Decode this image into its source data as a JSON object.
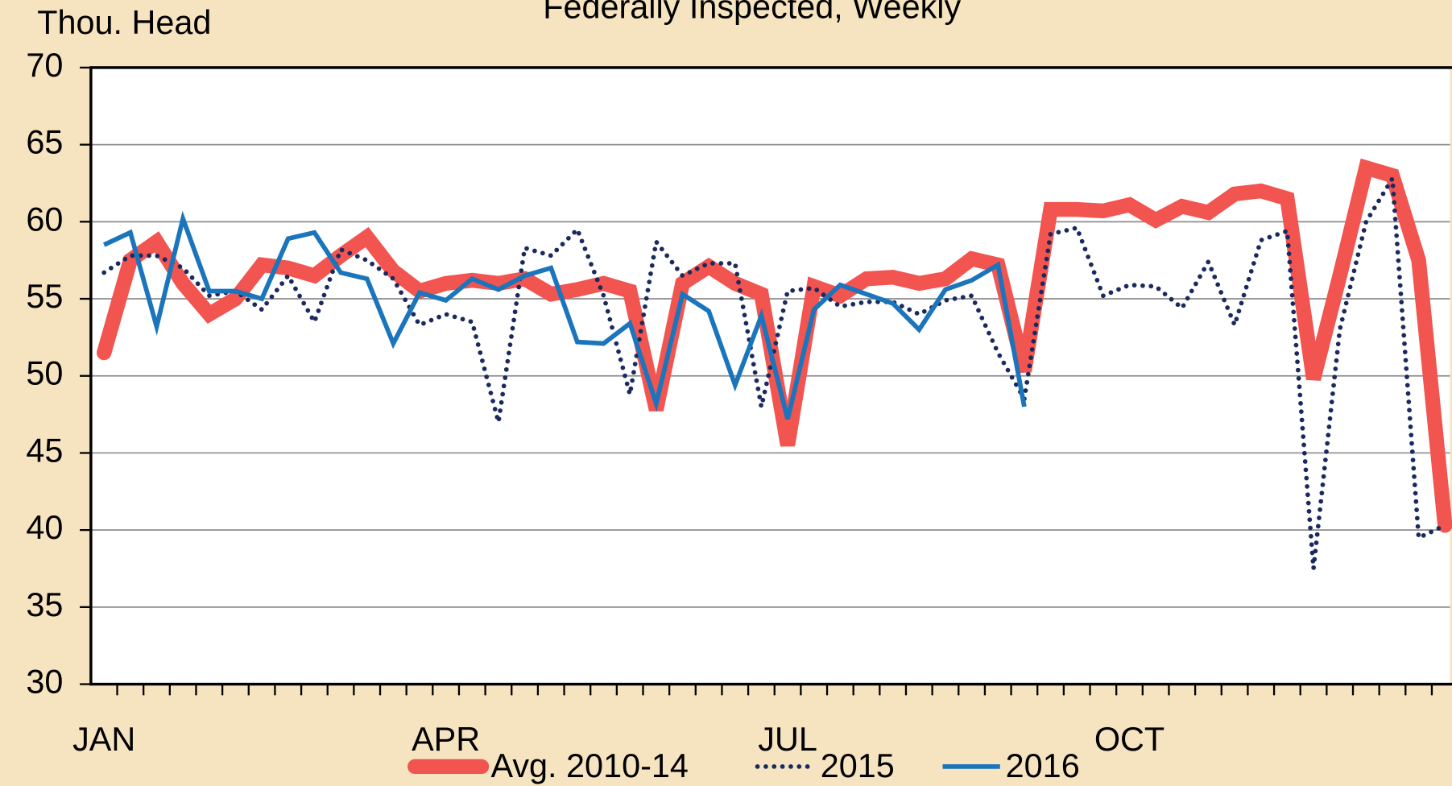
{
  "chart_data": {
    "type": "line",
    "title": "Federally Inspected, Weekly",
    "y_label": "Thou. Head",
    "categories": [
      "JAN",
      null,
      null,
      null,
      null,
      null,
      null,
      null,
      null,
      null,
      null,
      null,
      null,
      "APR",
      null,
      null,
      null,
      null,
      null,
      null,
      null,
      null,
      null,
      null,
      null,
      null,
      "JUL",
      null,
      null,
      null,
      null,
      null,
      null,
      null,
      null,
      null,
      null,
      null,
      null,
      "OCT",
      null,
      null,
      null,
      null,
      null,
      null,
      null,
      null,
      null,
      null,
      null,
      null
    ],
    "series": [
      {
        "name": "Avg. 2010-14",
        "color": "#f25450",
        "line_style": "solid",
        "values": [
          51.5,
          57.5,
          58.7,
          56,
          54,
          55,
          57.2,
          57,
          56.5,
          57.8,
          59,
          56.8,
          55.5,
          56,
          56.2,
          56,
          56.3,
          55.3,
          55.6,
          56,
          55.5,
          47.8,
          56,
          57.1,
          56,
          55.3,
          45.5,
          55.8,
          55.2,
          56.3,
          56.4,
          56,
          56.3,
          57.6,
          57.2,
          50.3,
          60.8,
          60.8,
          60.7,
          61.1,
          60.1,
          61,
          60.6,
          61.8,
          62,
          61.5,
          49.8,
          56.5,
          63.5,
          63,
          57.5,
          40.3
        ]
      },
      {
        "name": "2015",
        "color": "#1a2a5e",
        "line_style": "dotted",
        "values": [
          56.7,
          57.8,
          57.8,
          57,
          55.2,
          55.5,
          54.3,
          56.5,
          53.5,
          58.2,
          57.5,
          56.3,
          53.3,
          54,
          53.5,
          47,
          58.3,
          57.8,
          59.5,
          55.2,
          48.8,
          58.7,
          56.5,
          57.3,
          57.3,
          48,
          55.5,
          55.7,
          54.5,
          54.8,
          54.8,
          54,
          54.9,
          55.2,
          51.5,
          48.5,
          59.2,
          59.6,
          55.2,
          55.9,
          55.8,
          54.4,
          57.4,
          53.3,
          58.8,
          59.4,
          37.5,
          53,
          60,
          62.8,
          39.5,
          40.3
        ]
      },
      {
        "name": "2016",
        "color": "#1a75bc",
        "line_style": "solid",
        "values": [
          58.5,
          59.3,
          53.2,
          60.2,
          55.5,
          55.5,
          55,
          58.9,
          59.3,
          56.7,
          56.3,
          52.1,
          55.4,
          54.9,
          56.3,
          55.6,
          56.5,
          57,
          52.2,
          52.1,
          53.4,
          48.2,
          55.3,
          54.2,
          49.4,
          53.9,
          47.2,
          54.3,
          55.9,
          55.3,
          54.7,
          53,
          55.6,
          56.2,
          57.2,
          48,
          null,
          null,
          null,
          null,
          null,
          null,
          null,
          null,
          null,
          null,
          null,
          null,
          null,
          null,
          null,
          null
        ]
      }
    ],
    "ylim": [
      30,
      70
    ],
    "yticks": [
      30,
      35,
      40,
      45,
      50,
      55,
      60,
      65,
      70
    ],
    "grid": true
  }
}
